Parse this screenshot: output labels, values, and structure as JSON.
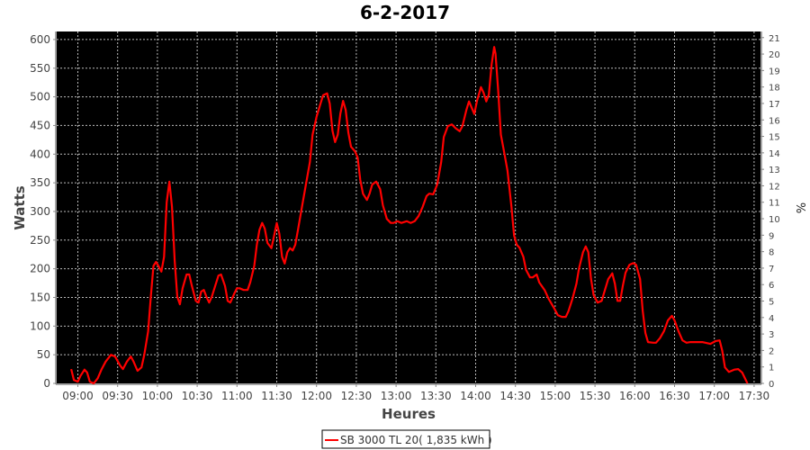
{
  "chart_data": {
    "type": "line",
    "title": "6-2-2017",
    "xlabel": "Heures",
    "ylabel": "Watts",
    "y2label": "%",
    "ylim": [
      0,
      614
    ],
    "y2lim": [
      0,
      21.37
    ],
    "grid": true,
    "legend_placement": "bottom",
    "background": "#000000",
    "line_color": "#ff0000",
    "x_ticks": [
      "09:00",
      "09:30",
      "10:00",
      "10:30",
      "11:00",
      "11:30",
      "12:00",
      "12:30",
      "13:00",
      "13:30",
      "14:00",
      "14:30",
      "15:00",
      "15:30",
      "16:00",
      "16:30",
      "17:00",
      "17:30"
    ],
    "y_ticks": [
      0,
      50,
      100,
      150,
      200,
      250,
      300,
      350,
      400,
      450,
      500,
      550,
      600
    ],
    "y2_ticks": [
      0,
      1,
      2,
      3,
      4,
      5,
      6,
      7,
      8,
      9,
      10,
      11,
      12,
      13,
      14,
      15,
      16,
      17,
      18,
      19,
      20,
      21
    ],
    "series": [
      {
        "name": "SB 3000 TL 20( 1,835 kWh )",
        "points": [
          [
            "08:55",
            25
          ],
          [
            "08:57",
            6
          ],
          [
            "09:00",
            3
          ],
          [
            "09:02",
            13
          ],
          [
            "09:05",
            24
          ],
          [
            "09:07",
            19
          ],
          [
            "09:09",
            3
          ],
          [
            "09:12",
            0
          ],
          [
            "09:15",
            9
          ],
          [
            "09:18",
            25
          ],
          [
            "09:21",
            38
          ],
          [
            "09:25",
            50
          ],
          [
            "09:28",
            47
          ],
          [
            "09:32",
            31
          ],
          [
            "09:34",
            25
          ],
          [
            "09:37",
            38
          ],
          [
            "09:40",
            47
          ],
          [
            "09:42",
            38
          ],
          [
            "09:45",
            22
          ],
          [
            "09:48",
            28
          ],
          [
            "09:50",
            49
          ],
          [
            "09:53",
            91
          ],
          [
            "09:55",
            150
          ],
          [
            "09:57",
            205
          ],
          [
            "09:59",
            212
          ],
          [
            "10:01",
            204
          ],
          [
            "10:03",
            195
          ],
          [
            "10:05",
            221
          ],
          [
            "10:07",
            316
          ],
          [
            "10:09",
            352
          ],
          [
            "10:11",
            308
          ],
          [
            "10:13",
            214
          ],
          [
            "10:15",
            151
          ],
          [
            "10:17",
            138
          ],
          [
            "10:19",
            166
          ],
          [
            "10:22",
            190
          ],
          [
            "10:24",
            190
          ],
          [
            "10:26",
            170
          ],
          [
            "10:29",
            144
          ],
          [
            "10:31",
            141
          ],
          [
            "10:33",
            160
          ],
          [
            "10:35",
            163
          ],
          [
            "10:37",
            151
          ],
          [
            "10:39",
            141
          ],
          [
            "10:41",
            151
          ],
          [
            "10:44",
            173
          ],
          [
            "10:46",
            188
          ],
          [
            "10:48",
            190
          ],
          [
            "10:51",
            170
          ],
          [
            "10:53",
            144
          ],
          [
            "10:55",
            141
          ],
          [
            "10:58",
            157
          ],
          [
            "11:00",
            166
          ],
          [
            "11:02",
            166
          ],
          [
            "11:05",
            163
          ],
          [
            "11:08",
            163
          ],
          [
            "11:10",
            176
          ],
          [
            "11:13",
            205
          ],
          [
            "11:15",
            242
          ],
          [
            "11:17",
            268
          ],
          [
            "11:19",
            280
          ],
          [
            "11:21",
            270
          ],
          [
            "11:23",
            245
          ],
          [
            "11:26",
            236
          ],
          [
            "11:28",
            258
          ],
          [
            "11:30",
            280
          ],
          [
            "11:32",
            261
          ],
          [
            "11:34",
            221
          ],
          [
            "11:36",
            209
          ],
          [
            "11:38",
            229
          ],
          [
            "11:40",
            236
          ],
          [
            "11:42",
            232
          ],
          [
            "11:44",
            242
          ],
          [
            "11:46",
            268
          ],
          [
            "11:49",
            308
          ],
          [
            "11:52",
            347
          ],
          [
            "11:55",
            386
          ],
          [
            "11:57",
            434
          ],
          [
            "12:00",
            465
          ],
          [
            "12:03",
            488
          ],
          [
            "12:05",
            503
          ],
          [
            "12:08",
            506
          ],
          [
            "12:10",
            488
          ],
          [
            "12:12",
            441
          ],
          [
            "12:14",
            421
          ],
          [
            "12:16",
            434
          ],
          [
            "12:18",
            471
          ],
          [
            "12:20",
            493
          ],
          [
            "12:22",
            477
          ],
          [
            "12:24",
            437
          ],
          [
            "12:26",
            413
          ],
          [
            "12:29",
            405
          ],
          [
            "12:31",
            394
          ],
          [
            "12:33",
            355
          ],
          [
            "12:35",
            331
          ],
          [
            "12:38",
            320
          ],
          [
            "12:40",
            331
          ],
          [
            "12:42",
            347
          ],
          [
            "12:45",
            352
          ],
          [
            "12:48",
            339
          ],
          [
            "12:50",
            311
          ],
          [
            "12:53",
            287
          ],
          [
            "12:56",
            280
          ],
          [
            "12:58",
            280
          ],
          [
            "13:01",
            283
          ],
          [
            "13:04",
            280
          ],
          [
            "13:08",
            283
          ],
          [
            "13:11",
            280
          ],
          [
            "13:14",
            283
          ],
          [
            "13:17",
            292
          ],
          [
            "13:20",
            308
          ],
          [
            "13:23",
            327
          ],
          [
            "13:25",
            331
          ],
          [
            "13:28",
            330
          ],
          [
            "13:31",
            347
          ],
          [
            "13:34",
            386
          ],
          [
            "13:36",
            430
          ],
          [
            "13:39",
            449
          ],
          [
            "13:42",
            452
          ],
          [
            "13:45",
            445
          ],
          [
            "13:48",
            440
          ],
          [
            "13:50",
            449
          ],
          [
            "13:53",
            477
          ],
          [
            "13:55",
            492
          ],
          [
            "13:57",
            481
          ],
          [
            "13:59",
            470
          ],
          [
            "14:01",
            493
          ],
          [
            "14:04",
            517
          ],
          [
            "14:06",
            507
          ],
          [
            "14:08",
            492
          ],
          [
            "14:10",
            504
          ],
          [
            "14:12",
            556
          ],
          [
            "14:14",
            587
          ],
          [
            "14:15",
            575
          ],
          [
            "14:17",
            512
          ],
          [
            "14:19",
            434
          ],
          [
            "14:21",
            410
          ],
          [
            "14:24",
            371
          ],
          [
            "14:27",
            308
          ],
          [
            "14:29",
            258
          ],
          [
            "14:31",
            242
          ],
          [
            "14:33",
            237
          ],
          [
            "14:36",
            221
          ],
          [
            "14:38",
            198
          ],
          [
            "14:41",
            185
          ],
          [
            "14:43",
            185
          ],
          [
            "14:46",
            190
          ],
          [
            "14:48",
            176
          ],
          [
            "14:52",
            163
          ],
          [
            "14:55",
            148
          ],
          [
            "14:59",
            132
          ],
          [
            "15:02",
            119
          ],
          [
            "15:05",
            116
          ],
          [
            "15:08",
            116
          ],
          [
            "15:10",
            126
          ],
          [
            "15:13",
            148
          ],
          [
            "15:16",
            174
          ],
          [
            "15:18",
            201
          ],
          [
            "15:21",
            229
          ],
          [
            "15:23",
            239
          ],
          [
            "15:25",
            229
          ],
          [
            "15:27",
            182
          ],
          [
            "15:29",
            154
          ],
          [
            "15:32",
            141
          ],
          [
            "15:35",
            144
          ],
          [
            "15:37",
            159
          ],
          [
            "15:40",
            182
          ],
          [
            "15:43",
            192
          ],
          [
            "15:45",
            174
          ],
          [
            "15:47",
            144
          ],
          [
            "15:49",
            144
          ],
          [
            "15:51",
            170
          ],
          [
            "15:53",
            193
          ],
          [
            "15:56",
            207
          ],
          [
            "15:59",
            210
          ],
          [
            "16:01",
            207
          ],
          [
            "16:04",
            182
          ],
          [
            "16:06",
            127
          ],
          [
            "16:08",
            88
          ],
          [
            "16:10",
            72
          ],
          [
            "16:14",
            71
          ],
          [
            "16:16",
            71
          ],
          [
            "16:19",
            79
          ],
          [
            "16:22",
            91
          ],
          [
            "16:25",
            110
          ],
          [
            "16:28",
            118
          ],
          [
            "16:30",
            110
          ],
          [
            "16:33",
            91
          ],
          [
            "16:36",
            75
          ],
          [
            "16:39",
            71
          ],
          [
            "16:42",
            72
          ],
          [
            "16:47",
            72
          ],
          [
            "16:51",
            72
          ],
          [
            "16:57",
            69
          ],
          [
            "17:01",
            74
          ],
          [
            "17:04",
            75
          ],
          [
            "17:06",
            57
          ],
          [
            "17:08",
            28
          ],
          [
            "17:11",
            20
          ],
          [
            "17:15",
            24
          ],
          [
            "17:18",
            25
          ],
          [
            "17:21",
            19
          ],
          [
            "17:25",
            0
          ]
        ]
      }
    ]
  }
}
